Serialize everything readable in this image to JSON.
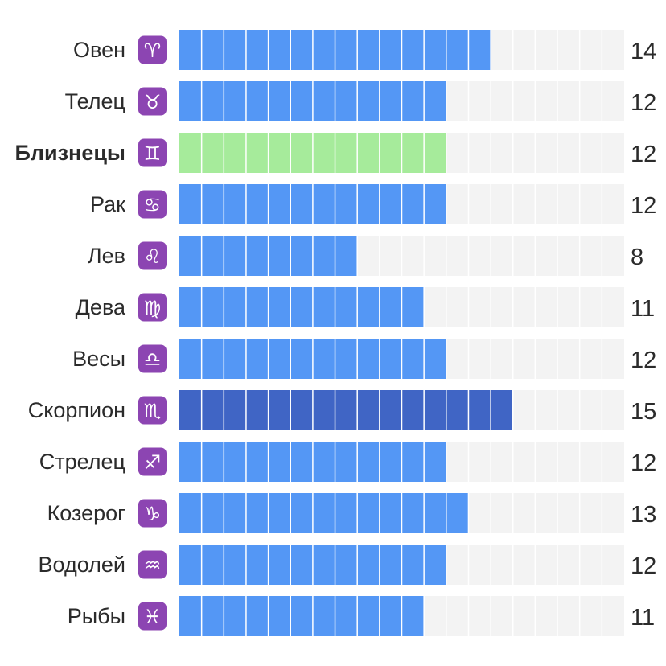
{
  "chart_data": {
    "type": "bar",
    "orientation": "horizontal",
    "max_cells": 20,
    "categories": [
      "Овен",
      "Телец",
      "Близнецы",
      "Рак",
      "Лев",
      "Дева",
      "Весы",
      "Скорпион",
      "Стрелец",
      "Козерог",
      "Водолей",
      "Рыбы"
    ],
    "symbols": [
      "♈",
      "♉",
      "♊",
      "♋",
      "♌",
      "♍",
      "♎",
      "♏",
      "♐",
      "♑",
      "♒",
      "♓"
    ],
    "values": [
      14,
      12,
      12,
      12,
      8,
      11,
      12,
      15,
      12,
      13,
      12,
      11
    ],
    "value_labels": [
      "14",
      "12",
      "12",
      "12",
      "8",
      "11",
      "12",
      "15",
      "12",
      "13",
      "12",
      "11"
    ],
    "highlight_category": "Близнецы",
    "max_category": "Скорпион",
    "colors": {
      "default_bar": "#5497f5",
      "highlight_bar": "#a6eb9b",
      "max_bar": "#4065c5",
      "track": "#f3f3f3",
      "cell_divider": "#ffffff",
      "sign_badge": "#8c45b2",
      "text": "#2b2b2b"
    }
  }
}
